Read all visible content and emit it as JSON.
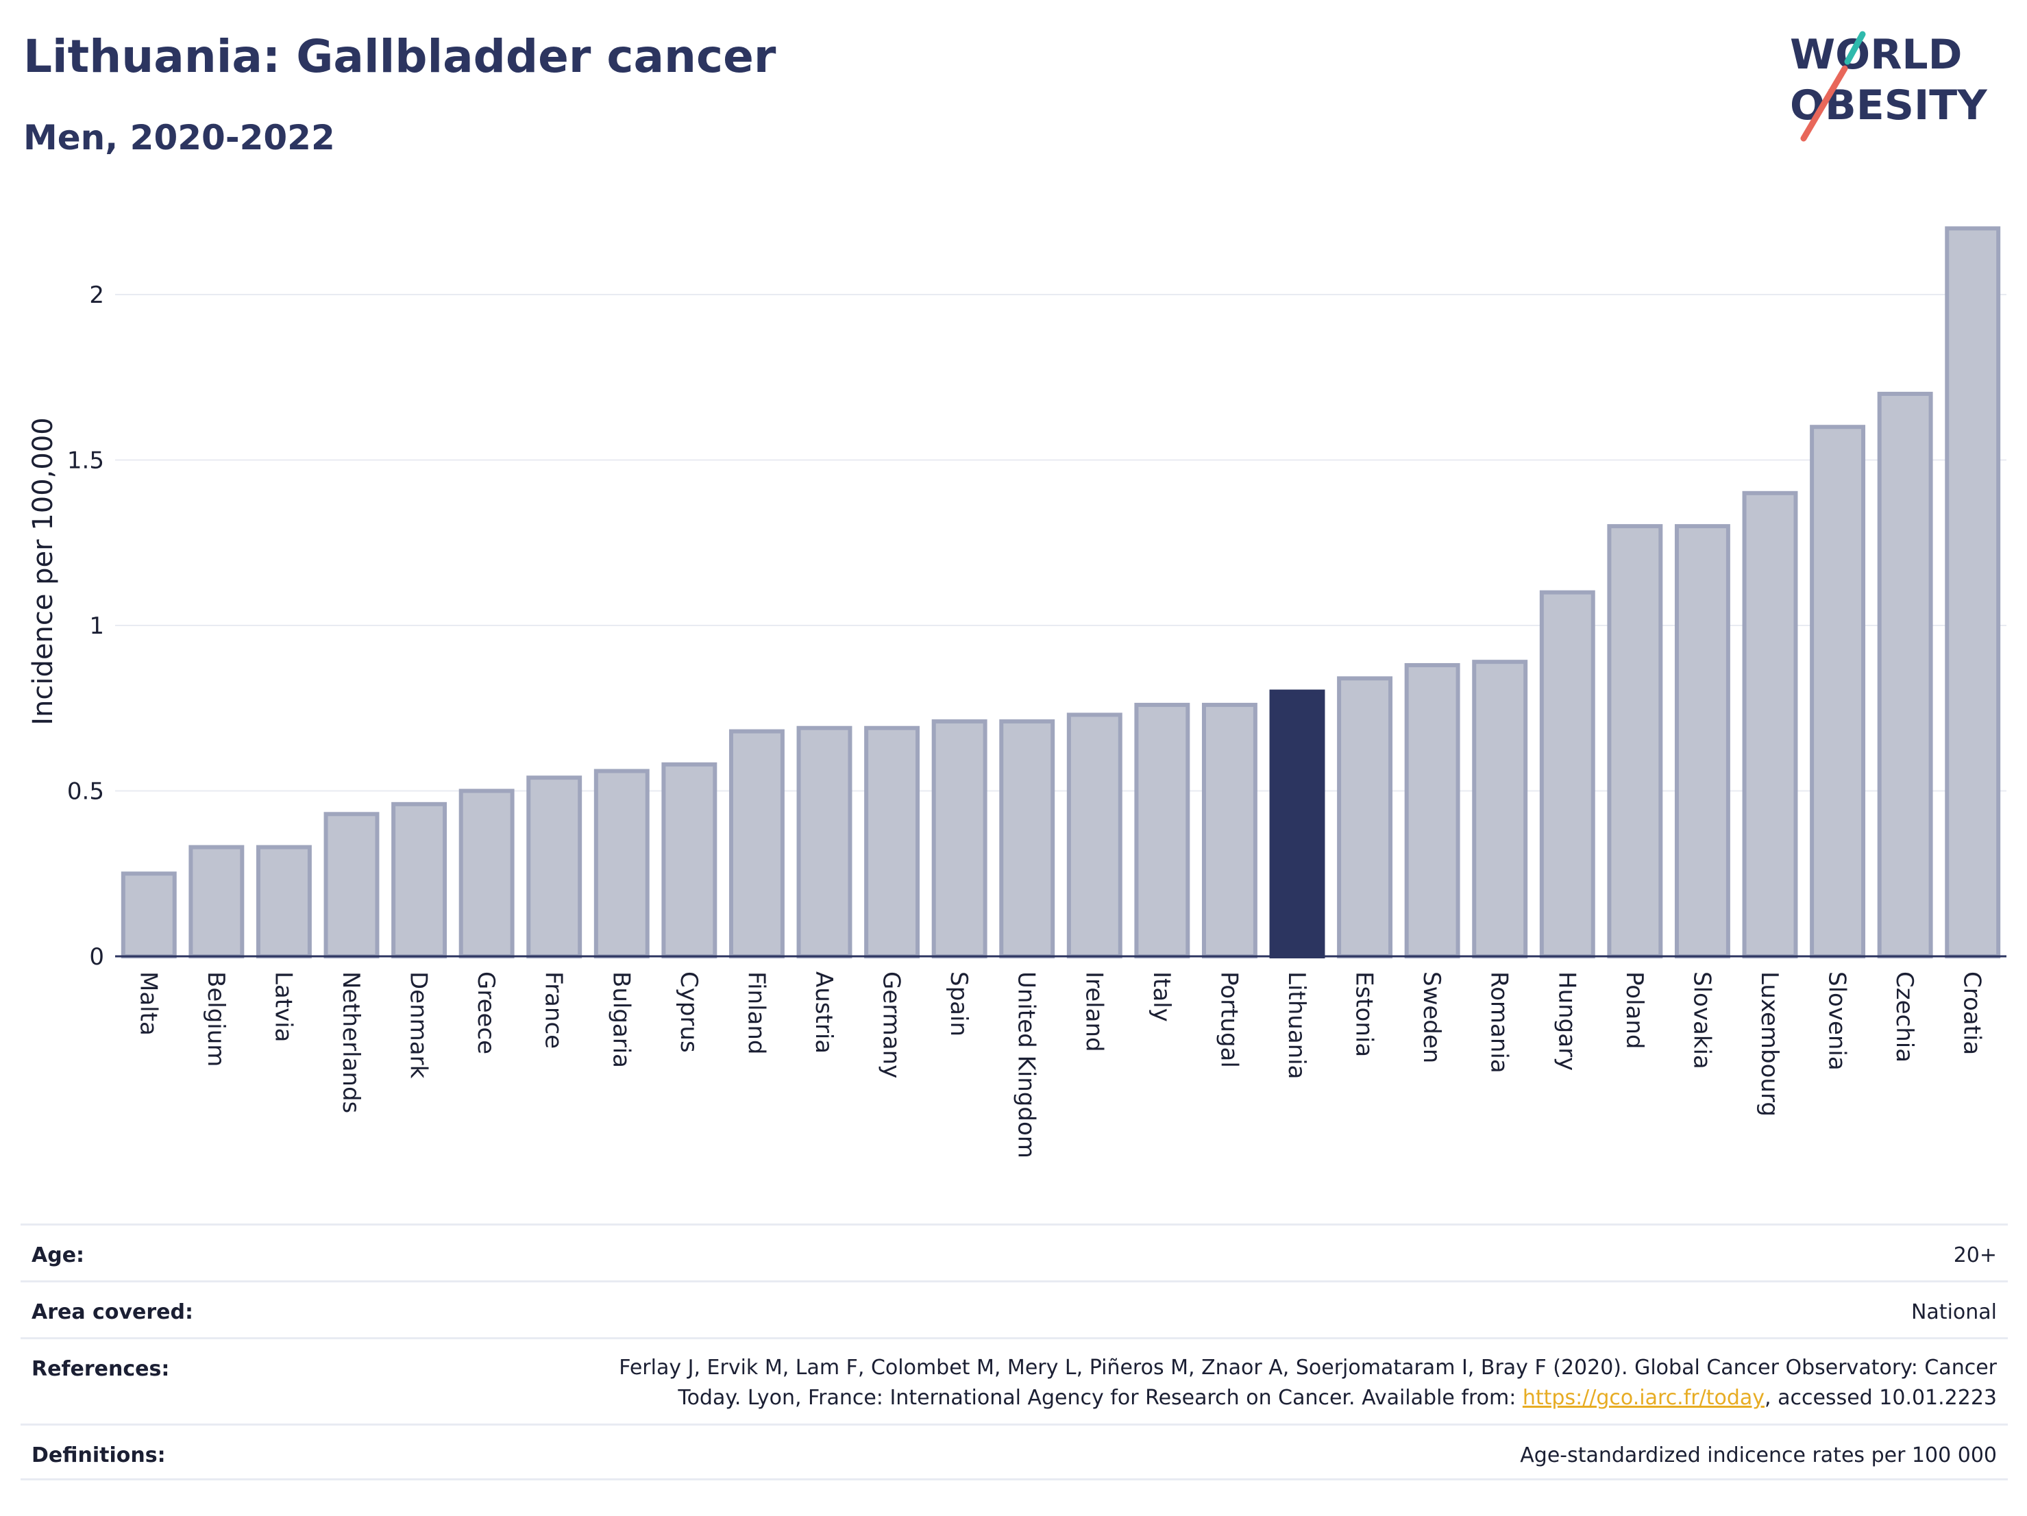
{
  "header": {
    "title": "Lithuania: Gallbladder cancer",
    "subtitle": "Men, 2020-2022"
  },
  "logo": {
    "line1": "WORLD",
    "line2": "OBESITY",
    "accent_colors": [
      "#2fb9ac",
      "#e8675a"
    ]
  },
  "colors": {
    "highlight": "#2c3560",
    "bar_fill": "#bfc3d0",
    "bar_stroke": "#9fa5bd",
    "axis": "#2c3560",
    "grid": "#e8ebf2"
  },
  "chart_data": {
    "type": "bar",
    "title": "",
    "xlabel": "",
    "ylabel": "Incidence per 100,000",
    "ylim": [
      0,
      2.2
    ],
    "yticks": [
      "0",
      "0.5",
      "1",
      "1.5",
      "2"
    ],
    "highlight": "Lithuania",
    "categories": [
      "Malta",
      "Belgium",
      "Latvia",
      "Netherlands",
      "Denmark",
      "Greece",
      "France",
      "Bulgaria",
      "Cyprus",
      "Finland",
      "Austria",
      "Germany",
      "Spain",
      "United Kingdom",
      "Ireland",
      "Italy",
      "Portugal",
      "Lithuania",
      "Estonia",
      "Sweden",
      "Romania",
      "Hungary",
      "Poland",
      "Slovakia",
      "Luxembourg",
      "Slovenia",
      "Czechia",
      "Croatia"
    ],
    "values": [
      0.25,
      0.33,
      0.33,
      0.43,
      0.46,
      0.5,
      0.54,
      0.56,
      0.58,
      0.68,
      0.69,
      0.69,
      0.71,
      0.71,
      0.73,
      0.76,
      0.76,
      0.8,
      0.84,
      0.88,
      0.89,
      1.1,
      1.3,
      1.3,
      1.4,
      1.6,
      1.7,
      2.2
    ],
    "grid": true,
    "legend": "none"
  },
  "info": {
    "age_label": "Age:",
    "age_value": "20+",
    "area_label": "Area covered:",
    "area_value": "National",
    "references_label": "References:",
    "references_line1": "Ferlay J, Ervik M, Lam F, Colombet M, Mery L, Piñeros M, Znaor A, Soerjomataram I, Bray F (2020). Global Cancer Observatory: Cancer",
    "references_line2_pre": "Today. Lyon, France: International Agency for Research on Cancer. Available from: ",
    "references_link": "https://gco.iarc.fr/today",
    "references_line2_post": ", accessed 10.01.2223",
    "definitions_label": "Definitions:",
    "definitions_value": "Age-standardized indicence rates per 100 000"
  }
}
